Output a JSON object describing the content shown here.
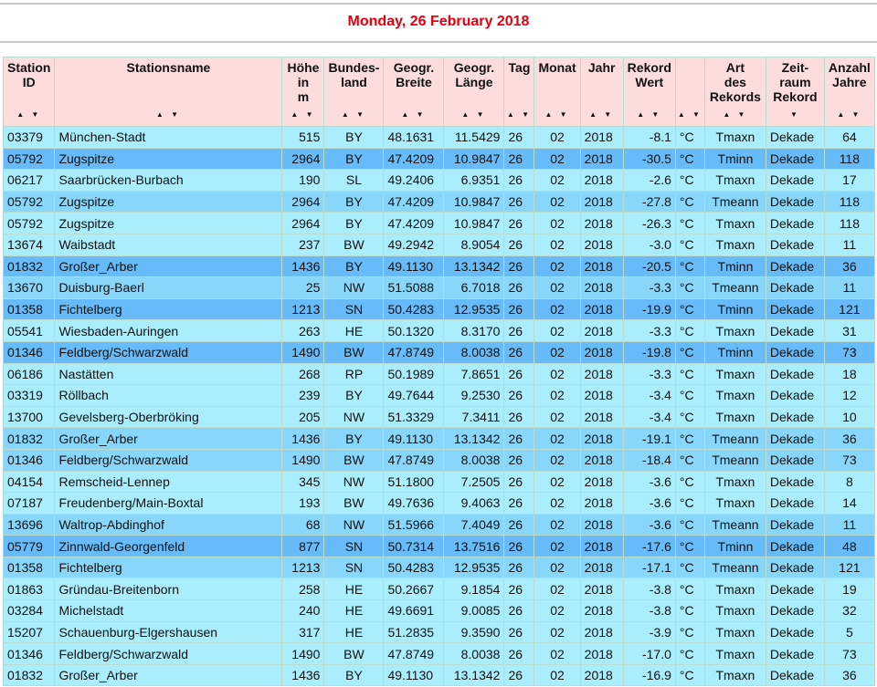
{
  "title": "Monday, 26 February 2018",
  "headers": [
    "Station ID",
    "Stationsname",
    "Höhe in m",
    "Bundes-land",
    "Geogr. Breite",
    "Geogr. Länge",
    "Tag",
    "Monat",
    "Jahr",
    "Rekord Wert",
    "",
    "Art des Rekords",
    "Zeit-raum Rekord",
    "Anzahl Jahre"
  ],
  "sort_icons": [
    "▲ ▼",
    "▲ ▼",
    "▲ ▼",
    "▲ ▼",
    "▲ ▼",
    "▲ ▼",
    "▲ ▼",
    "▲ ▼",
    "▲ ▼",
    "▲ ▼",
    "▲ ▼",
    "▲ ▼",
    "▼",
    "▲ ▼"
  ],
  "row_colors": {
    "Tmaxn": "#aaedfc",
    "Tminn": "#66bbf8",
    "Tmeann": "#88d6fa"
  },
  "rows": [
    [
      "03379",
      "München-Stadt",
      "515",
      "BY",
      "48.1631",
      "11.5429",
      "26",
      "02",
      "2018",
      "-8.1",
      "°C",
      "Tmaxn",
      "Dekade",
      "64"
    ],
    [
      "05792",
      "Zugspitze",
      "2964",
      "BY",
      "47.4209",
      "10.9847",
      "26",
      "02",
      "2018",
      "-30.5",
      "°C",
      "Tminn",
      "Dekade",
      "118"
    ],
    [
      "06217",
      "Saarbrücken-Burbach",
      "190",
      "SL",
      "49.2406",
      "6.9351",
      "26",
      "02",
      "2018",
      "-2.6",
      "°C",
      "Tmaxn",
      "Dekade",
      "17"
    ],
    [
      "05792",
      "Zugspitze",
      "2964",
      "BY",
      "47.4209",
      "10.9847",
      "26",
      "02",
      "2018",
      "-27.8",
      "°C",
      "Tmeann",
      "Dekade",
      "118"
    ],
    [
      "05792",
      "Zugspitze",
      "2964",
      "BY",
      "47.4209",
      "10.9847",
      "26",
      "02",
      "2018",
      "-26.3",
      "°C",
      "Tmaxn",
      "Dekade",
      "118"
    ],
    [
      "13674",
      "Waibstadt",
      "237",
      "BW",
      "49.2942",
      "8.9054",
      "26",
      "02",
      "2018",
      "-3.0",
      "°C",
      "Tmaxn",
      "Dekade",
      "11"
    ],
    [
      "01832",
      "Großer_Arber",
      "1436",
      "BY",
      "49.1130",
      "13.1342",
      "26",
      "02",
      "2018",
      "-20.5",
      "°C",
      "Tminn",
      "Dekade",
      "36"
    ],
    [
      "13670",
      "Duisburg-Baerl",
      "25",
      "NW",
      "51.5088",
      "6.7018",
      "26",
      "02",
      "2018",
      "-3.3",
      "°C",
      "Tmeann",
      "Dekade",
      "11"
    ],
    [
      "01358",
      "Fichtelberg",
      "1213",
      "SN",
      "50.4283",
      "12.9535",
      "26",
      "02",
      "2018",
      "-19.9",
      "°C",
      "Tminn",
      "Dekade",
      "121"
    ],
    [
      "05541",
      "Wiesbaden-Auringen",
      "263",
      "HE",
      "50.1320",
      "8.3170",
      "26",
      "02",
      "2018",
      "-3.3",
      "°C",
      "Tmaxn",
      "Dekade",
      "31"
    ],
    [
      "01346",
      "Feldberg/Schwarzwald",
      "1490",
      "BW",
      "47.8749",
      "8.0038",
      "26",
      "02",
      "2018",
      "-19.8",
      "°C",
      "Tminn",
      "Dekade",
      "73"
    ],
    [
      "06186",
      "Nastätten",
      "268",
      "RP",
      "50.1989",
      "7.8651",
      "26",
      "02",
      "2018",
      "-3.3",
      "°C",
      "Tmaxn",
      "Dekade",
      "18"
    ],
    [
      "03319",
      "Röllbach",
      "239",
      "BY",
      "49.7644",
      "9.2530",
      "26",
      "02",
      "2018",
      "-3.4",
      "°C",
      "Tmaxn",
      "Dekade",
      "12"
    ],
    [
      "13700",
      "Gevelsberg-Oberbröking",
      "205",
      "NW",
      "51.3329",
      "7.3411",
      "26",
      "02",
      "2018",
      "-3.4",
      "°C",
      "Tmaxn",
      "Dekade",
      "10"
    ],
    [
      "01832",
      "Großer_Arber",
      "1436",
      "BY",
      "49.1130",
      "13.1342",
      "26",
      "02",
      "2018",
      "-19.1",
      "°C",
      "Tmeann",
      "Dekade",
      "36"
    ],
    [
      "01346",
      "Feldberg/Schwarzwald",
      "1490",
      "BW",
      "47.8749",
      "8.0038",
      "26",
      "02",
      "2018",
      "-18.4",
      "°C",
      "Tmeann",
      "Dekade",
      "73"
    ],
    [
      "04154",
      "Remscheid-Lennep",
      "345",
      "NW",
      "51.1800",
      "7.2505",
      "26",
      "02",
      "2018",
      "-3.6",
      "°C",
      "Tmaxn",
      "Dekade",
      "8"
    ],
    [
      "07187",
      "Freudenberg/Main-Boxtal",
      "193",
      "BW",
      "49.7636",
      "9.4063",
      "26",
      "02",
      "2018",
      "-3.6",
      "°C",
      "Tmaxn",
      "Dekade",
      "14"
    ],
    [
      "13696",
      "Waltrop-Abdinghof",
      "68",
      "NW",
      "51.5966",
      "7.4049",
      "26",
      "02",
      "2018",
      "-3.6",
      "°C",
      "Tmeann",
      "Dekade",
      "11"
    ],
    [
      "05779",
      "Zinnwald-Georgenfeld",
      "877",
      "SN",
      "50.7314",
      "13.7516",
      "26",
      "02",
      "2018",
      "-17.6",
      "°C",
      "Tminn",
      "Dekade",
      "48"
    ],
    [
      "01358",
      "Fichtelberg",
      "1213",
      "SN",
      "50.4283",
      "12.9535",
      "26",
      "02",
      "2018",
      "-17.1",
      "°C",
      "Tmeann",
      "Dekade",
      "121"
    ],
    [
      "01863",
      "Gründau-Breitenborn",
      "258",
      "HE",
      "50.2667",
      "9.1854",
      "26",
      "02",
      "2018",
      "-3.8",
      "°C",
      "Tmaxn",
      "Dekade",
      "19"
    ],
    [
      "03284",
      "Michelstadt",
      "240",
      "HE",
      "49.6691",
      "9.0085",
      "26",
      "02",
      "2018",
      "-3.8",
      "°C",
      "Tmaxn",
      "Dekade",
      "32"
    ],
    [
      "15207",
      "Schauenburg-Elgershausen",
      "317",
      "HE",
      "51.2835",
      "9.3590",
      "26",
      "02",
      "2018",
      "-3.9",
      "°C",
      "Tmaxn",
      "Dekade",
      "5"
    ],
    [
      "01346",
      "Feldberg/Schwarzwald",
      "1490",
      "BW",
      "47.8749",
      "8.0038",
      "26",
      "02",
      "2018",
      "-17.0",
      "°C",
      "Tmaxn",
      "Dekade",
      "73"
    ],
    [
      "01832",
      "Großer_Arber",
      "1436",
      "BY",
      "49.1130",
      "13.1342",
      "26",
      "02",
      "2018",
      "-16.9",
      "°C",
      "Tmaxn",
      "Dekade",
      "36"
    ]
  ]
}
